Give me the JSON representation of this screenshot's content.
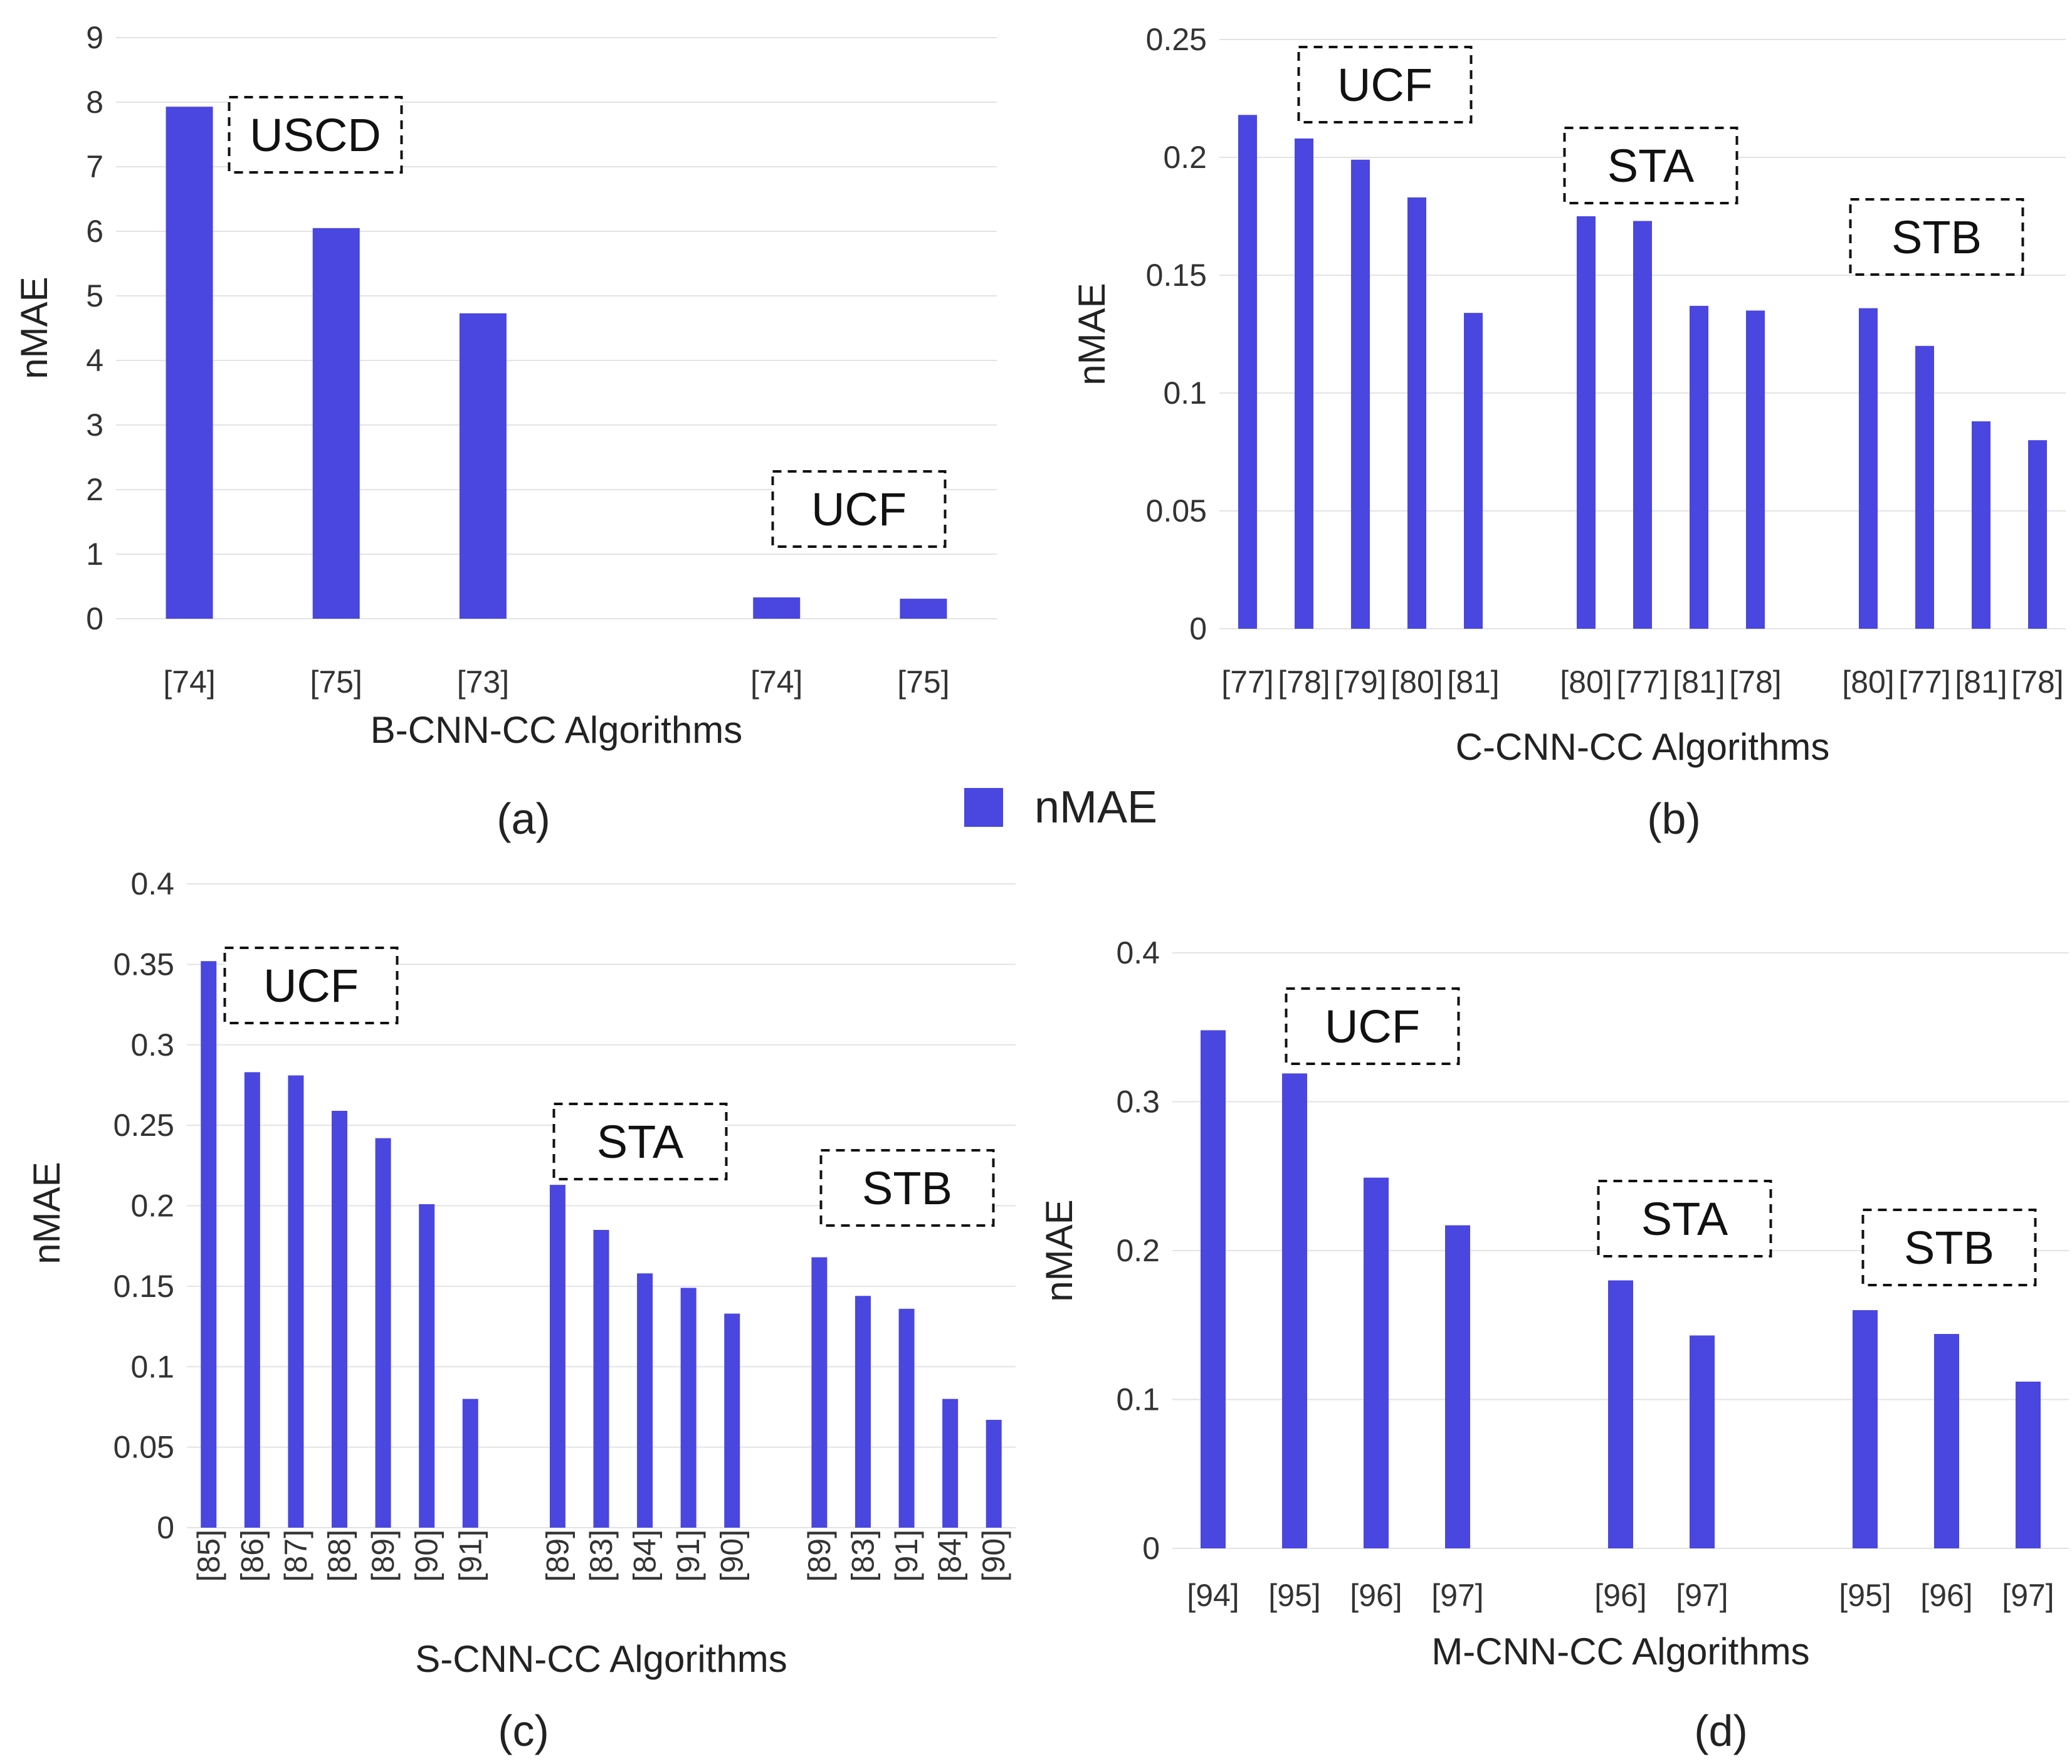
{
  "legend": {
    "label": "nMAE",
    "color": "#4a46e0"
  },
  "chart_data": [
    {
      "type": "bar",
      "panel": "(a)",
      "xlabel": "B-CNN-CC Algorithms",
      "ylabel": "nMAE",
      "ylim": [
        0,
        9
      ],
      "yticks": [
        "0",
        "1",
        "2",
        "3",
        "4",
        "5",
        "6",
        "7",
        "8",
        "9"
      ],
      "tick_rotation": 0,
      "categories": [
        "[74]",
        "[75]",
        "[73]",
        "",
        "[74]",
        "[75]"
      ],
      "values": [
        7.93,
        6.05,
        4.73,
        null,
        0.33,
        0.31
      ],
      "groups": [
        {
          "label": "USCD",
          "members": [
            0,
            1,
            2
          ]
        },
        {
          "label": "UCF",
          "members": [
            4,
            5
          ]
        }
      ]
    },
    {
      "type": "bar",
      "panel": "(b)",
      "xlabel": "C-CNN-CC Algorithms",
      "ylabel": "nMAE",
      "ylim": [
        0,
        0.25
      ],
      "yticks": [
        "0",
        "0.05",
        "0.1",
        "0.15",
        "0.2",
        "0.25"
      ],
      "tick_rotation": 0,
      "categories": [
        "[77]",
        "[78]",
        "[79]",
        "[80]",
        "[81]",
        "",
        "[80]",
        "[77]",
        "[81]",
        "[78]",
        "",
        "[80]",
        "[77]",
        "[81]",
        "[78]"
      ],
      "values": [
        0.218,
        0.208,
        0.199,
        0.183,
        0.134,
        null,
        0.175,
        0.173,
        0.137,
        0.135,
        null,
        0.136,
        0.12,
        0.088,
        0.08
      ],
      "groups": [
        {
          "label": "UCF",
          "members": [
            0,
            1,
            2,
            3,
            4
          ]
        },
        {
          "label": "STA",
          "members": [
            6,
            7,
            8,
            9
          ]
        },
        {
          "label": "STB",
          "members": [
            11,
            12,
            13,
            14
          ]
        }
      ]
    },
    {
      "type": "bar",
      "panel": "(c)",
      "xlabel": "S-CNN-CC Algorithms",
      "ylabel": "nMAE",
      "ylim": [
        0,
        0.4
      ],
      "yticks": [
        "0",
        "0.05",
        "0.1",
        "0.15",
        "0.2",
        "0.25",
        "0.3",
        "0.35",
        "0.4"
      ],
      "tick_rotation": -90,
      "categories": [
        "[85]",
        "[86]",
        "[87]",
        "[88]",
        "[89]",
        "[90]",
        "[91]",
        "",
        "[89]",
        "[83]",
        "[84]",
        "[91]",
        "[90]",
        "",
        "[89]",
        "[83]",
        "[91]",
        "[84]",
        "[90]"
      ],
      "values": [
        0.352,
        0.283,
        0.281,
        0.259,
        0.242,
        0.201,
        0.08,
        null,
        0.213,
        0.185,
        0.158,
        0.149,
        0.133,
        null,
        0.168,
        0.144,
        0.136,
        0.08,
        0.067
      ],
      "groups": [
        {
          "label": "UCF",
          "members": [
            0,
            1,
            2,
            3,
            4,
            5,
            6
          ]
        },
        {
          "label": "STA",
          "members": [
            8,
            9,
            10,
            11,
            12
          ]
        },
        {
          "label": "STB",
          "members": [
            14,
            15,
            16,
            17,
            18
          ]
        }
      ]
    },
    {
      "type": "bar",
      "panel": "(d)",
      "xlabel": "M-CNN-CC Algorithms",
      "ylabel": "nMAE",
      "ylim": [
        0,
        0.4
      ],
      "yticks": [
        "0",
        "0.1",
        "0.2",
        "0.3",
        "0.4"
      ],
      "tick_rotation": 0,
      "categories": [
        "[94]",
        "[95]",
        "[96]",
        "[97]",
        "",
        "[96]",
        "[97]",
        "",
        "[95]",
        "[96]",
        "[97]"
      ],
      "values": [
        0.348,
        0.319,
        0.249,
        0.217,
        null,
        0.18,
        0.143,
        null,
        0.16,
        0.144,
        0.112
      ],
      "groups": [
        {
          "label": "UCF",
          "members": [
            0,
            1,
            2,
            3
          ]
        },
        {
          "label": "STA",
          "members": [
            5,
            6
          ]
        },
        {
          "label": "STB",
          "members": [
            8,
            9,
            10
          ]
        }
      ]
    }
  ]
}
